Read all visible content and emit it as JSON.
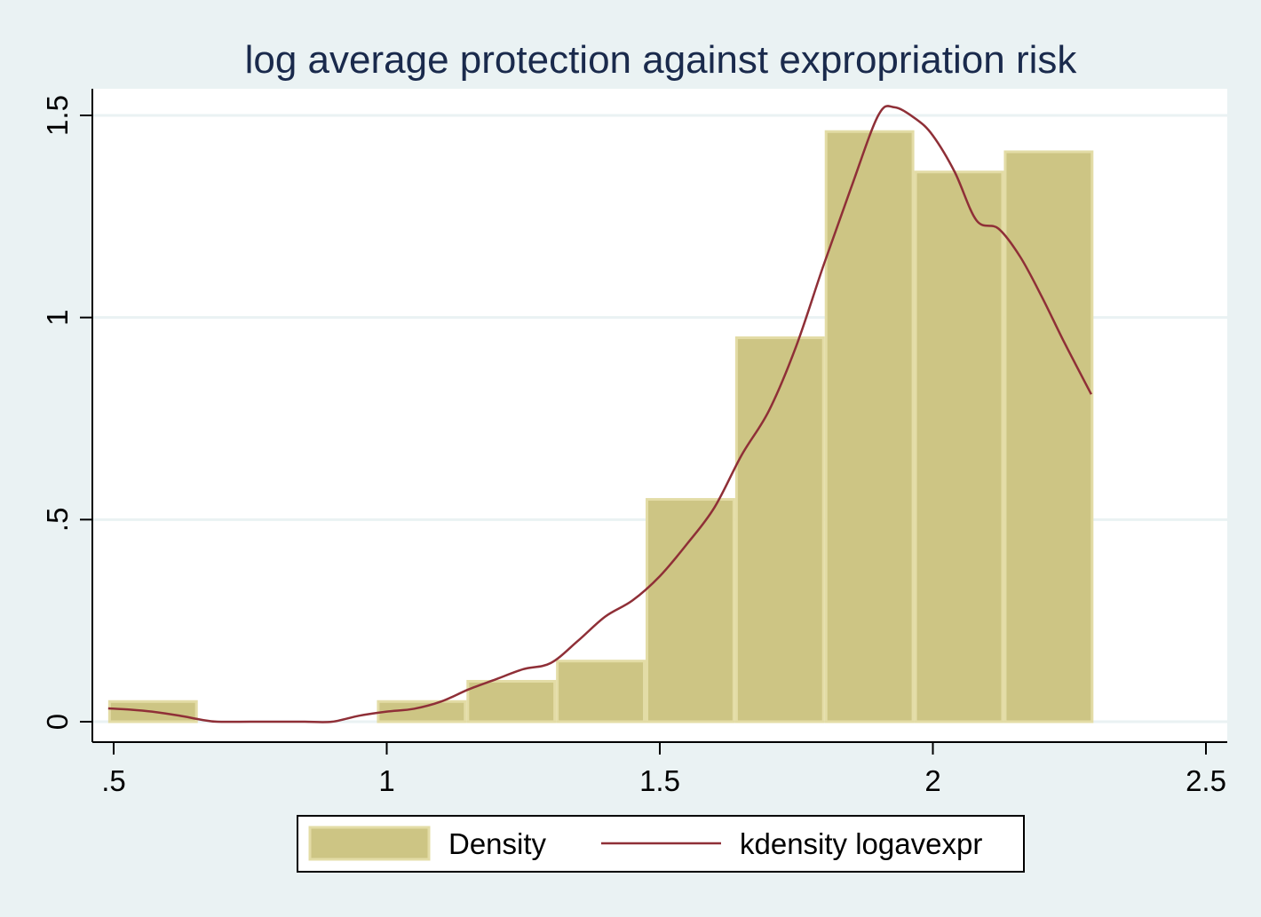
{
  "chart_data": {
    "type": "bar",
    "title": "log average protection against expropriation risk",
    "xlabel": "",
    "ylabel": "",
    "xlim": [
      0.5,
      2.5
    ],
    "ylim": [
      0,
      1.5
    ],
    "x_ticks": [
      {
        "value": 0.5,
        "label": ".5"
      },
      {
        "value": 1,
        "label": "1"
      },
      {
        "value": 1.5,
        "label": "1.5"
      },
      {
        "value": 2,
        "label": "2"
      },
      {
        "value": 2.5,
        "label": "2.5"
      }
    ],
    "y_ticks": [
      {
        "value": 0,
        "label": "0"
      },
      {
        "value": 0.5,
        "label": ".5"
      },
      {
        "value": 1,
        "label": "1"
      },
      {
        "value": 1.5,
        "label": "1.5"
      }
    ],
    "grid": true,
    "legend_position": "bottom",
    "series": [
      {
        "name": "Density",
        "type": "histogram",
        "color": "#cdc584",
        "edge_color": "#e3dca6",
        "bins": [
          {
            "x0": 0.49,
            "x1": 0.654,
            "value": 0.05
          },
          {
            "x0": 0.654,
            "x1": 0.818,
            "value": 0
          },
          {
            "x0": 0.818,
            "x1": 0.982,
            "value": 0
          },
          {
            "x0": 0.982,
            "x1": 1.146,
            "value": 0.05
          },
          {
            "x0": 1.146,
            "x1": 1.31,
            "value": 0.1
          },
          {
            "x0": 1.31,
            "x1": 1.474,
            "value": 0.15
          },
          {
            "x0": 1.474,
            "x1": 1.638,
            "value": 0.55
          },
          {
            "x0": 1.638,
            "x1": 1.802,
            "value": 0.95
          },
          {
            "x0": 1.802,
            "x1": 1.966,
            "value": 1.46
          },
          {
            "x0": 1.966,
            "x1": 2.13,
            "value": 1.36
          },
          {
            "x0": 2.13,
            "x1": 2.294,
            "value": 1.41
          }
        ]
      },
      {
        "name": "kdensity logavexpr",
        "type": "line",
        "color": "#8f2f37",
        "x": [
          0.49,
          0.53,
          0.57,
          0.62,
          0.66,
          0.69,
          0.75,
          0.8,
          0.85,
          0.9,
          0.95,
          1.0,
          1.05,
          1.1,
          1.15,
          1.2,
          1.25,
          1.3,
          1.35,
          1.4,
          1.45,
          1.5,
          1.55,
          1.6,
          1.65,
          1.7,
          1.75,
          1.8,
          1.85,
          1.9,
          1.93,
          1.97,
          2.0,
          2.04,
          2.08,
          2.12,
          2.16,
          2.2,
          2.24,
          2.29
        ],
        "y": [
          0.033,
          0.03,
          0.025,
          0.015,
          0.005,
          0.0,
          0.0,
          0.0,
          0.0,
          0.0,
          0.015,
          0.025,
          0.032,
          0.05,
          0.08,
          0.105,
          0.13,
          0.145,
          0.2,
          0.26,
          0.3,
          0.36,
          0.44,
          0.53,
          0.66,
          0.77,
          0.93,
          1.13,
          1.32,
          1.5,
          1.52,
          1.49,
          1.45,
          1.36,
          1.24,
          1.22,
          1.15,
          1.05,
          0.94,
          0.81
        ]
      }
    ],
    "legend": [
      "Density",
      "kdensity logavexpr"
    ]
  }
}
